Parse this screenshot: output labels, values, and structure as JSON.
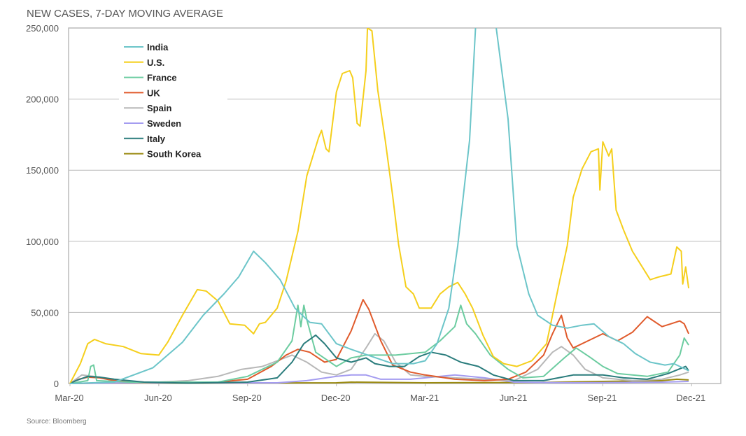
{
  "chart_data": {
    "type": "line",
    "title": "NEW CASES, 7-DAY MOVING AVERAGE",
    "source": "Source: Bloomberg",
    "xlabel": "",
    "ylabel": "",
    "x_unit": "months since Mar-20",
    "xlim": [
      0,
      21
    ],
    "ylim": [
      0,
      250000
    ],
    "grid": true,
    "legend_placement": "top-left",
    "x_ticks": [
      {
        "m": 0,
        "label": "Mar-20"
      },
      {
        "m": 3,
        "label": "Jun-20"
      },
      {
        "m": 6,
        "label": "Sep-20"
      },
      {
        "m": 9,
        "label": "Dec-20"
      },
      {
        "m": 12,
        "label": "Mar-21"
      },
      {
        "m": 15,
        "label": "Jun-21"
      },
      {
        "m": 18,
        "label": "Sep-21"
      },
      {
        "m": 21,
        "label": "Dec-21"
      }
    ],
    "y_ticks": [
      {
        "v": 0,
        "label": "0"
      },
      {
        "v": 50000,
        "label": "50,000"
      },
      {
        "v": 100000,
        "label": "100,000"
      },
      {
        "v": 150000,
        "label": "150,000"
      },
      {
        "v": 200000,
        "label": "200,000"
      },
      {
        "v": 250000,
        "label": "250,000"
      }
    ],
    "value_unit": "thousands",
    "series": [
      {
        "name": "India",
        "color": "#6cc5c9",
        "points": [
          [
            0,
            0
          ],
          [
            1.5,
            1
          ],
          [
            2.8,
            11
          ],
          [
            3.8,
            29
          ],
          [
            4.5,
            48
          ],
          [
            5.2,
            63
          ],
          [
            5.7,
            75
          ],
          [
            6.2,
            93
          ],
          [
            6.6,
            85
          ],
          [
            7.1,
            73
          ],
          [
            7.6,
            53
          ],
          [
            8.1,
            43
          ],
          [
            8.5,
            42
          ],
          [
            9.0,
            28
          ],
          [
            9.5,
            24
          ],
          [
            10.2,
            19
          ],
          [
            10.9,
            14
          ],
          [
            11.6,
            14
          ],
          [
            12.0,
            16
          ],
          [
            12.4,
            28
          ],
          [
            12.8,
            53
          ],
          [
            13.1,
            97
          ],
          [
            13.5,
            171
          ],
          [
            13.7,
            250
          ],
          [
            14.05,
            390
          ],
          [
            14.4,
            250
          ],
          [
            14.8,
            186
          ],
          [
            15.1,
            97
          ],
          [
            15.5,
            63
          ],
          [
            15.8,
            48
          ],
          [
            16.3,
            41
          ],
          [
            16.8,
            39
          ],
          [
            17.3,
            41
          ],
          [
            17.7,
            42
          ],
          [
            18.2,
            33
          ],
          [
            18.7,
            28
          ],
          [
            19.1,
            21
          ],
          [
            19.6,
            15
          ],
          [
            20.1,
            13
          ],
          [
            20.4,
            14
          ],
          [
            20.7,
            11
          ],
          [
            20.9,
            9
          ]
        ]
      },
      {
        "name": "U.S.",
        "color": "#f5cf1c",
        "points": [
          [
            0,
            0
          ],
          [
            0.35,
            14
          ],
          [
            0.6,
            28
          ],
          [
            0.83,
            31
          ],
          [
            1.2,
            28
          ],
          [
            1.8,
            26
          ],
          [
            2.4,
            21
          ],
          [
            3.0,
            20
          ],
          [
            3.3,
            29
          ],
          [
            3.8,
            48
          ],
          [
            4.3,
            66
          ],
          [
            4.6,
            65
          ],
          [
            5.0,
            58
          ],
          [
            5.4,
            42
          ],
          [
            5.9,
            41
          ],
          [
            6.2,
            35
          ],
          [
            6.4,
            42
          ],
          [
            6.6,
            43
          ],
          [
            7.0,
            53
          ],
          [
            7.3,
            72
          ],
          [
            7.7,
            107
          ],
          [
            8.0,
            146
          ],
          [
            8.4,
            173
          ],
          [
            8.5,
            178
          ],
          [
            8.65,
            165
          ],
          [
            8.75,
            163
          ],
          [
            9.0,
            205
          ],
          [
            9.2,
            218
          ],
          [
            9.45,
            220
          ],
          [
            9.55,
            215
          ],
          [
            9.7,
            183
          ],
          [
            9.8,
            181
          ],
          [
            10.0,
            220
          ],
          [
            10.05,
            250
          ],
          [
            10.2,
            248
          ],
          [
            10.4,
            206
          ],
          [
            10.65,
            171
          ],
          [
            10.9,
            132
          ],
          [
            11.1,
            98
          ],
          [
            11.35,
            68
          ],
          [
            11.6,
            63
          ],
          [
            11.8,
            53
          ],
          [
            12.2,
            53
          ],
          [
            12.5,
            63
          ],
          [
            12.8,
            68
          ],
          [
            13.1,
            71
          ],
          [
            13.35,
            63
          ],
          [
            13.6,
            53
          ],
          [
            13.95,
            34
          ],
          [
            14.3,
            19
          ],
          [
            14.65,
            14
          ],
          [
            15.1,
            12
          ],
          [
            15.6,
            16
          ],
          [
            16.1,
            28
          ],
          [
            16.3,
            48
          ],
          [
            16.55,
            73
          ],
          [
            16.8,
            97
          ],
          [
            17.0,
            131
          ],
          [
            17.3,
            151
          ],
          [
            17.6,
            163
          ],
          [
            17.85,
            165
          ],
          [
            17.9,
            136
          ],
          [
            18.0,
            170
          ],
          [
            18.2,
            160
          ],
          [
            18.3,
            165
          ],
          [
            18.45,
            122
          ],
          [
            18.7,
            108
          ],
          [
            19.0,
            93
          ],
          [
            19.3,
            83
          ],
          [
            19.6,
            73
          ],
          [
            19.9,
            75
          ],
          [
            20.3,
            77
          ],
          [
            20.5,
            96
          ],
          [
            20.65,
            93
          ],
          [
            20.7,
            70
          ],
          [
            20.8,
            82
          ],
          [
            20.9,
            67
          ]
        ]
      },
      {
        "name": "France",
        "color": "#6ccca0",
        "points": [
          [
            0,
            0
          ],
          [
            0.6,
            2
          ],
          [
            0.7,
            12
          ],
          [
            0.8,
            13
          ],
          [
            0.9,
            2
          ],
          [
            2,
            1
          ],
          [
            5,
            1
          ],
          [
            6,
            5
          ],
          [
            7,
            15
          ],
          [
            7.5,
            30
          ],
          [
            7.7,
            55
          ],
          [
            7.8,
            40
          ],
          [
            7.9,
            55
          ],
          [
            8.0,
            45
          ],
          [
            8.3,
            22
          ],
          [
            9,
            12
          ],
          [
            9.5,
            18
          ],
          [
            10,
            20
          ],
          [
            11,
            20
          ],
          [
            12,
            22
          ],
          [
            12.5,
            30
          ],
          [
            13.0,
            40
          ],
          [
            13.2,
            55
          ],
          [
            13.4,
            42
          ],
          [
            13.7,
            35
          ],
          [
            14.2,
            20
          ],
          [
            14.8,
            10
          ],
          [
            15.3,
            4
          ],
          [
            16,
            5
          ],
          [
            16.7,
            18
          ],
          [
            17.1,
            25
          ],
          [
            17.6,
            18
          ],
          [
            18,
            12
          ],
          [
            18.5,
            7
          ],
          [
            19.5,
            5
          ],
          [
            20.2,
            8
          ],
          [
            20.6,
            20
          ],
          [
            20.75,
            32
          ],
          [
            20.9,
            27
          ]
        ]
      },
      {
        "name": "UK",
        "color": "#e05a2b",
        "points": [
          [
            0,
            0
          ],
          [
            0.3,
            3
          ],
          [
            0.6,
            4.5
          ],
          [
            1,
            4
          ],
          [
            1.5,
            2
          ],
          [
            2.5,
            1
          ],
          [
            5,
            1
          ],
          [
            6,
            3
          ],
          [
            6.8,
            12
          ],
          [
            7.3,
            20
          ],
          [
            7.7,
            24
          ],
          [
            8.1,
            22
          ],
          [
            8.6,
            15
          ],
          [
            9,
            17
          ],
          [
            9.5,
            37
          ],
          [
            9.9,
            59
          ],
          [
            10.1,
            52
          ],
          [
            10.5,
            30
          ],
          [
            10.9,
            13
          ],
          [
            11.5,
            8
          ],
          [
            12,
            6
          ],
          [
            13,
            3
          ],
          [
            14,
            2
          ],
          [
            14.8,
            3
          ],
          [
            15.4,
            8
          ],
          [
            16,
            20
          ],
          [
            16.3,
            35
          ],
          [
            16.6,
            48
          ],
          [
            16.8,
            32
          ],
          [
            17,
            25
          ],
          [
            17.5,
            30
          ],
          [
            18,
            35
          ],
          [
            18.5,
            30
          ],
          [
            19,
            36
          ],
          [
            19.5,
            47
          ],
          [
            20,
            40
          ],
          [
            20.3,
            42
          ],
          [
            20.6,
            44
          ],
          [
            20.75,
            42
          ],
          [
            20.9,
            35
          ]
        ]
      },
      {
        "name": "Spain",
        "color": "#b8b8b8",
        "points": [
          [
            0,
            0
          ],
          [
            0.4,
            6
          ],
          [
            0.8,
            5
          ],
          [
            1.5,
            2
          ],
          [
            2.5,
            0.5
          ],
          [
            4,
            2
          ],
          [
            5,
            5
          ],
          [
            5.8,
            10
          ],
          [
            6.5,
            12
          ],
          [
            7,
            16
          ],
          [
            7.5,
            20
          ],
          [
            8,
            15
          ],
          [
            8.5,
            8
          ],
          [
            9,
            6
          ],
          [
            9.5,
            10
          ],
          [
            10,
            25
          ],
          [
            10.3,
            35
          ],
          [
            10.6,
            30
          ],
          [
            11,
            15
          ],
          [
            11.5,
            6
          ],
          [
            12,
            5
          ],
          [
            13,
            4
          ],
          [
            14,
            3
          ],
          [
            15,
            2
          ],
          [
            15.8,
            10
          ],
          [
            16.3,
            22
          ],
          [
            16.6,
            26
          ],
          [
            17,
            20
          ],
          [
            17.4,
            10
          ],
          [
            18,
            4
          ],
          [
            19,
            2
          ],
          [
            20,
            3
          ],
          [
            20.6,
            6
          ],
          [
            20.9,
            8
          ]
        ]
      },
      {
        "name": "Sweden",
        "color": "#a49cf0",
        "points": [
          [
            0,
            0
          ],
          [
            2,
            0.5
          ],
          [
            7,
            0.5
          ],
          [
            8,
            2
          ],
          [
            9,
            5
          ],
          [
            9.5,
            6
          ],
          [
            10,
            6
          ],
          [
            10.5,
            3
          ],
          [
            11.5,
            3
          ],
          [
            12,
            4
          ],
          [
            13,
            6
          ],
          [
            14,
            4
          ],
          [
            15,
            1
          ],
          [
            17,
            0.5
          ],
          [
            20,
            1
          ],
          [
            20.9,
            1.5
          ]
        ]
      },
      {
        "name": "Italy",
        "color": "#2a7c7c",
        "points": [
          [
            0,
            0
          ],
          [
            0.2,
            2
          ],
          [
            0.6,
            5
          ],
          [
            1,
            4.5
          ],
          [
            1.5,
            3
          ],
          [
            2.5,
            1
          ],
          [
            4,
            0.3
          ],
          [
            6,
            1
          ],
          [
            7,
            4
          ],
          [
            7.5,
            15
          ],
          [
            7.9,
            28
          ],
          [
            8.3,
            34
          ],
          [
            8.6,
            28
          ],
          [
            9,
            18
          ],
          [
            9.5,
            15
          ],
          [
            10,
            18
          ],
          [
            10.3,
            14
          ],
          [
            10.8,
            12
          ],
          [
            11.3,
            12
          ],
          [
            11.8,
            19
          ],
          [
            12.2,
            22
          ],
          [
            12.7,
            20
          ],
          [
            13.2,
            15
          ],
          [
            13.8,
            12
          ],
          [
            14.3,
            6
          ],
          [
            15,
            2
          ],
          [
            16,
            2
          ],
          [
            16.5,
            4
          ],
          [
            17,
            6
          ],
          [
            18,
            6
          ],
          [
            18.7,
            4
          ],
          [
            19.5,
            3
          ],
          [
            20.2,
            7
          ],
          [
            20.8,
            12
          ],
          [
            20.9,
            9
          ]
        ]
      },
      {
        "name": "South Korea",
        "color": "#9a8a10",
        "points": [
          [
            0,
            0
          ],
          [
            1,
            0.3
          ],
          [
            9,
            0.5
          ],
          [
            9.5,
            1
          ],
          [
            12,
            0.5
          ],
          [
            16,
            0.8
          ],
          [
            18,
            1.5
          ],
          [
            20,
            2
          ],
          [
            20.5,
            3
          ],
          [
            20.9,
            2.5
          ]
        ]
      }
    ]
  }
}
